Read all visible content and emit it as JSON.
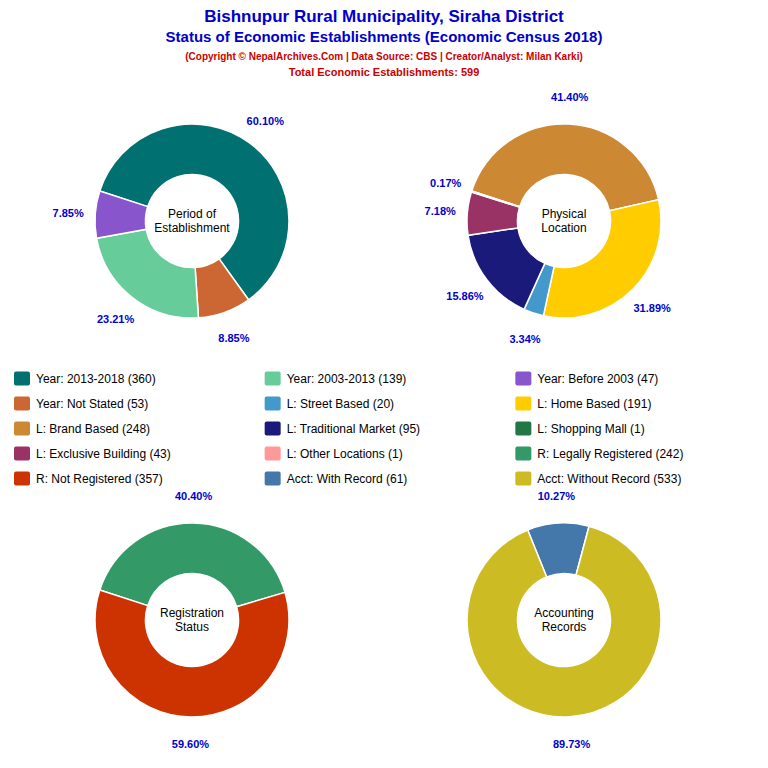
{
  "title": [
    "Bishnupur Rural Municipality, Siraha District",
    "Status of Economic Establishments (Economic Census 2018)"
  ],
  "title_color": "#0000cc",
  "subtitle": [
    "(Copyright © NepalArchives.Com | Data Source: CBS | Creator/Analyst: Milan Karki)",
    "Total Economic Establishments: 599"
  ],
  "subtitle_color": "#cc0000",
  "legend_entries": [
    {
      "label": "Year: 2013-2018 (360)",
      "color": "#007070"
    },
    {
      "label": "Year: Not Stated (53)",
      "color": "#cc6633"
    },
    {
      "label": "L: Brand Based (248)",
      "color": "#cc8833"
    },
    {
      "label": "L: Exclusive Building (43)",
      "color": "#993366"
    },
    {
      "label": "R: Not Registered (357)",
      "color": "#cc3300"
    },
    {
      "label": "Year: 2003-2013 (139)",
      "color": "#66cc99"
    },
    {
      "label": "L: Street Based (20)",
      "color": "#4499cc"
    },
    {
      "label": "L: Traditional Market (95)",
      "color": "#1a1a7a"
    },
    {
      "label": "L: Other Locations (1)",
      "color": "#ff9999"
    },
    {
      "label": "Acct: With Record (61)",
      "color": "#4477aa"
    },
    {
      "label": "Year: Before 2003 (47)",
      "color": "#8855cc"
    },
    {
      "label": "L: Home Based (191)",
      "color": "#ffcc00"
    },
    {
      "label": "L: Shopping Mall (1)",
      "color": "#227744"
    },
    {
      "label": "R: Legally Registered (242)",
      "color": "#339966"
    },
    {
      "label": "Acct: Without Record (533)",
      "color": "#ccbb22"
    }
  ],
  "chart_data": [
    {
      "type": "pie",
      "title": "Period of\nEstablishment",
      "values": [
        60.1,
        8.85,
        23.21,
        7.85
      ],
      "value_labels": [
        "60.10%",
        "8.85%",
        "23.21%",
        "7.85%"
      ],
      "colors": [
        "#007070",
        "#cc6633",
        "#66cc99",
        "#8855cc"
      ],
      "data_labels": true,
      "color": "#0000cc"
    },
    {
      "type": "pie",
      "title": "Physical\nLocation",
      "values": [
        41.4,
        31.89,
        3.34,
        15.86,
        7.18,
        0.17
      ],
      "value_labels": [
        "41.40%",
        "31.89%",
        "3.34%",
        "15.86%",
        "7.18%",
        "0.17%"
      ],
      "colors": [
        "#cc8833",
        "#ffcc00",
        "#4499cc",
        "#1a1a7a",
        "#993366",
        "#ff9999"
      ],
      "data_labels": true,
      "color": "#0000cc"
    },
    {
      "type": "pie",
      "title": "Registration\nStatus",
      "values": [
        40.4,
        59.6
      ],
      "value_labels": [
        "40.40%",
        "59.60%"
      ],
      "colors": [
        "#339966",
        "#cc3300"
      ],
      "data_labels": true,
      "color": "#0000cc"
    },
    {
      "type": "pie",
      "title": "Accounting\nRecords",
      "values": [
        10.27,
        89.73
      ],
      "value_labels": [
        "10.27%",
        "89.73%"
      ],
      "colors": [
        "#4477aa",
        "#ccbb22"
      ],
      "data_labels": true,
      "color": "#0000cc"
    }
  ]
}
